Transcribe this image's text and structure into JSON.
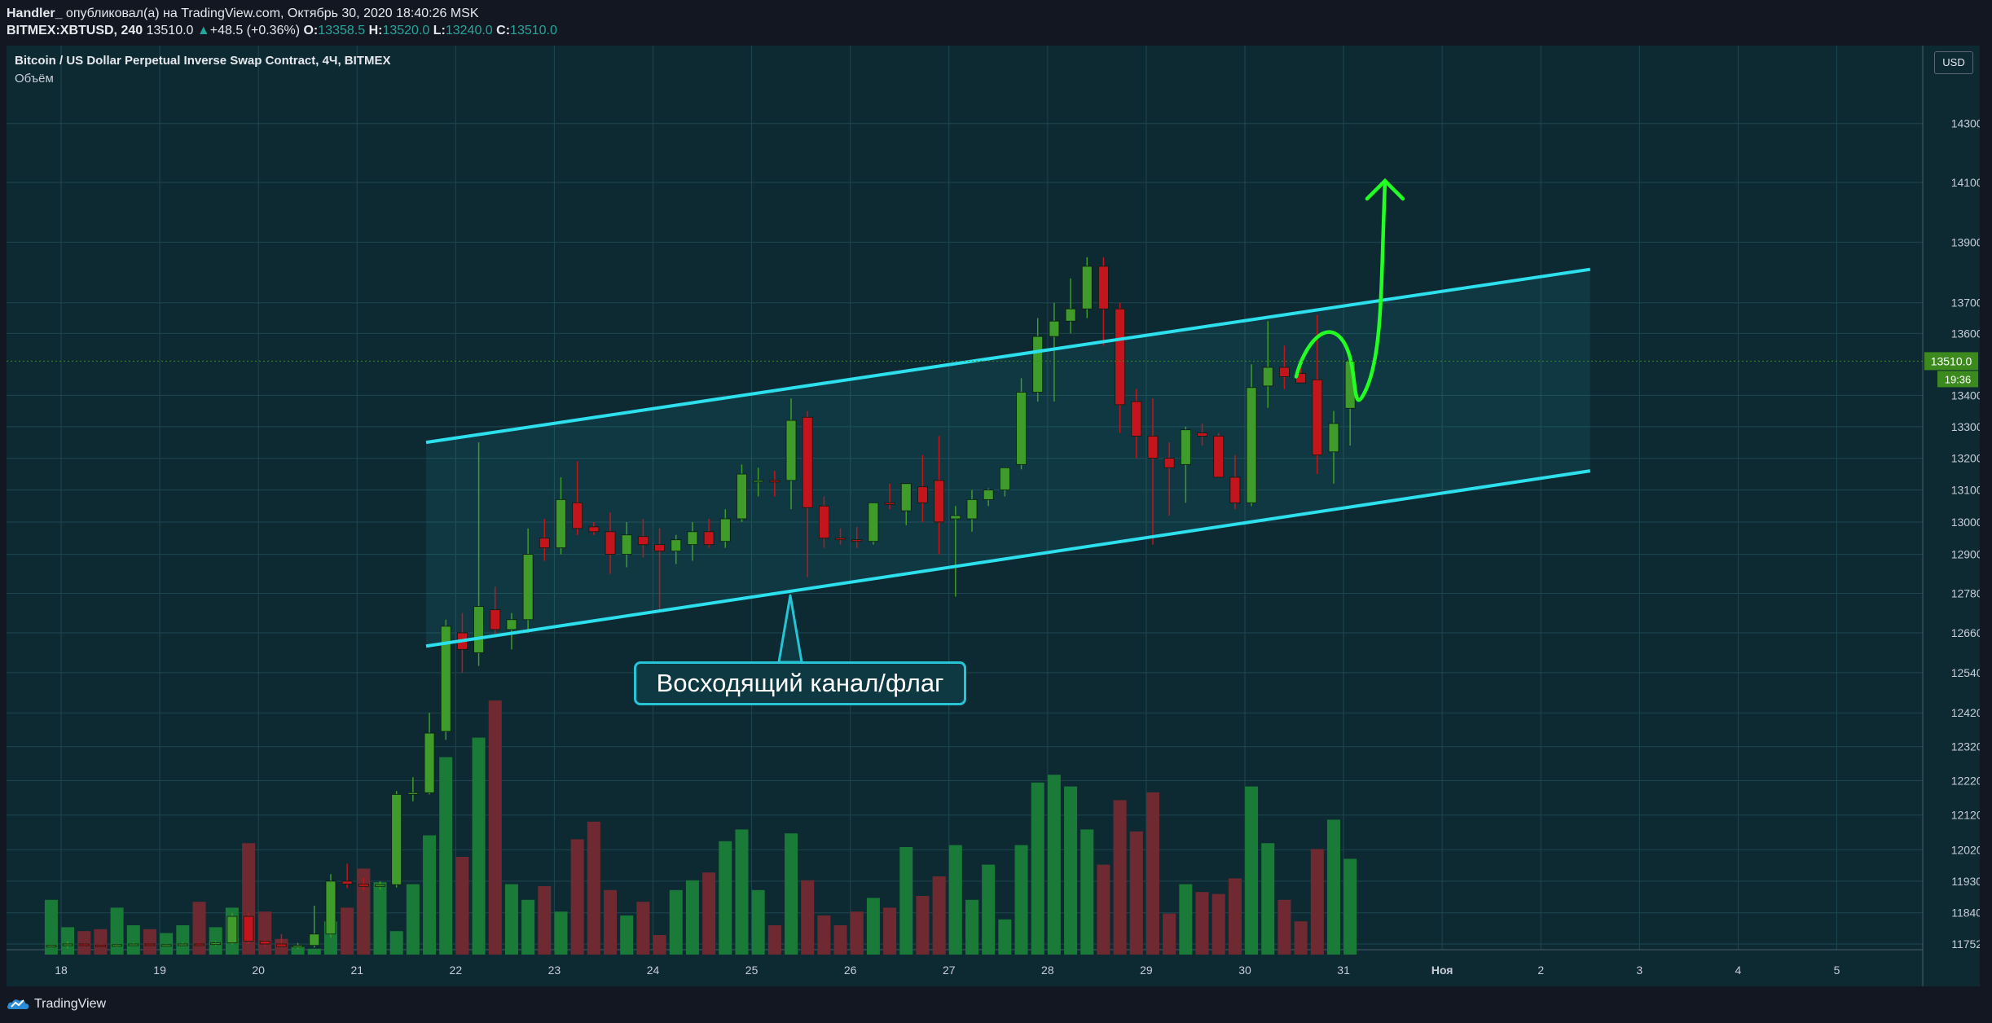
{
  "header": {
    "author": "Handler_",
    "published_text": "опубликовал(а) на TradingView.com, Октябрь 30, 2020 18:40:26 MSK",
    "symbol": "BITMEX:XBTUSD, 240",
    "last": "13510.0",
    "change_arrow": "▲",
    "change": "+48.5 (+0.36%)",
    "o_label": "O:",
    "o_value": "13358.5",
    "h_label": "H:",
    "h_value": "13520.0",
    "l_label": "L:",
    "l_value": "13240.0",
    "c_label": "C:",
    "c_value": "13510.0"
  },
  "legend": {
    "title": "Bitcoin / US Dollar Perpetual Inverse Swap Contract, 4Ч, BITMEX",
    "volume_label": "Объём"
  },
  "currency_button": "USD",
  "callout_text": "Восходящий канал/флаг",
  "brand": "TradingView",
  "colors": {
    "background": "#0d2a33",
    "up": "#3f9b2a",
    "down": "#c4151c",
    "volume_up": "#1a7a37",
    "volume_down": "#6e2a30",
    "channel_line": "#2de0ee",
    "forecast": "#22ff22",
    "price_label": "#3c8a1e"
  },
  "chart_data": {
    "type": "candlestick",
    "y_scale": "log",
    "y_ticks": [
      "14300.0",
      "14100.0",
      "13900.0",
      "13700.0",
      "13600.0",
      "13400.0",
      "13300.0",
      "13200.0",
      "13100.0",
      "13000.0",
      "12900.0",
      "12780.0",
      "12660.0",
      "12540.0",
      "12420.0",
      "12320.0",
      "12220.0",
      "12120.0",
      "12020.0",
      "11930.0",
      "11840.0",
      "11752.0"
    ],
    "y_tick_values": [
      14300,
      14100,
      13900,
      13700,
      13600,
      13400,
      13300,
      13200,
      13100,
      13000,
      12900,
      12780,
      12660,
      12540,
      12420,
      12320,
      12220,
      12120,
      12020,
      11930,
      11840,
      11752
    ],
    "x_ticks": [
      "18",
      "19",
      "20",
      "21",
      "22",
      "23",
      "24",
      "25",
      "26",
      "27",
      "28",
      "29",
      "30",
      "31",
      "Ноя",
      "2",
      "3",
      "4",
      "5"
    ],
    "x_tick_days": [
      18,
      19,
      20,
      21,
      22,
      23,
      24,
      25,
      26,
      27,
      28,
      29,
      30,
      31,
      32,
      33,
      34,
      35,
      36
    ],
    "current_price_label": "13510.0",
    "countdown_label": "19:36",
    "ohlc": [
      [
        "11745",
        "11750",
        "11742",
        "11748"
      ],
      [
        "11748",
        "11760",
        "11740",
        "11752"
      ],
      [
        "11752",
        "11755",
        "11745",
        "11749"
      ],
      [
        "11749",
        "11753",
        "11744",
        "11746"
      ],
      [
        "11746",
        "11752",
        "11742",
        "11750"
      ],
      [
        "11750",
        "11756",
        "11747",
        "11752"
      ],
      [
        "11752",
        "11755",
        "11746",
        "11748"
      ],
      [
        "11748",
        "11752",
        "11744",
        "11750"
      ],
      [
        "11750",
        "11756",
        "11747",
        "11752"
      ],
      [
        "11752",
        "11756",
        "11748",
        "11751"
      ],
      [
        "11751",
        "11760",
        "11746",
        "11755"
      ],
      [
        "11755",
        "11840",
        "11750",
        "11830"
      ],
      [
        "11830",
        "11840",
        "11752",
        "11760"
      ],
      [
        "11760",
        "11765",
        "11745",
        "11752"
      ],
      [
        "11752",
        "11780",
        "11742",
        "11745"
      ],
      [
        "11745",
        "11755",
        "11738",
        "11748"
      ],
      [
        "11748",
        "11860",
        "11742",
        "11780"
      ],
      [
        "11780",
        "11950",
        "11770",
        "11930"
      ],
      [
        "11930",
        "11980",
        "11910",
        "11922"
      ],
      [
        "11922",
        "11940",
        "11905",
        "11915"
      ],
      [
        "11915",
        "11930",
        "11905",
        "11920"
      ],
      [
        "11920",
        "12190",
        "11912",
        "12180"
      ],
      [
        "12180",
        "12230",
        "12160",
        "12185"
      ],
      [
        "12185",
        "12420",
        "12180",
        "12360"
      ],
      [
        "12365",
        "12700",
        "12340",
        "12680"
      ],
      [
        "12660",
        "12720",
        "12540",
        "12610"
      ],
      [
        "12600",
        "13250",
        "12560",
        "12740"
      ],
      [
        "12730",
        "12800",
        "12650",
        "12670"
      ],
      [
        "12670",
        "12720",
        "12610",
        "12700"
      ],
      [
        "12700",
        "12980",
        "12660",
        "12900"
      ],
      [
        "12950",
        "13010",
        "12880",
        "12920"
      ],
      [
        "12920",
        "13140",
        "12900",
        "13070"
      ],
      [
        "13060",
        "13190",
        "12960",
        "12980"
      ],
      [
        "12985",
        "13000",
        "12960",
        "12970"
      ],
      [
        "12970",
        "13030",
        "12840",
        "12900"
      ],
      [
        "12900",
        "13000",
        "12860",
        "12960"
      ],
      [
        "12955",
        "13010",
        "12890",
        "12930"
      ],
      [
        "12930",
        "12980",
        "12730",
        "12910"
      ],
      [
        "12910",
        "12960",
        "12870",
        "12945"
      ],
      [
        "12930",
        "13000",
        "12880",
        "12970"
      ],
      [
        "12970",
        "13010",
        "12920",
        "12930"
      ],
      [
        "12940",
        "13040",
        "12920",
        "13010"
      ],
      [
        "13010",
        "13180",
        "13000",
        "13150"
      ],
      [
        "13125",
        "13170",
        "13080",
        "13130"
      ],
      [
        "13130",
        "13160",
        "13080",
        "13125"
      ],
      [
        "13130",
        "13390",
        "13040",
        "13320"
      ],
      [
        "13330",
        "13350",
        "12830",
        "13045"
      ],
      [
        "13050",
        "13080",
        "12920",
        "12950"
      ],
      [
        "12950",
        "12980",
        "12930",
        "12945"
      ],
      [
        "12945",
        "12985",
        "12920",
        "12940"
      ],
      [
        "12940",
        "13040",
        "12930",
        "13060"
      ],
      [
        "13060",
        "13120",
        "13040",
        "13058"
      ],
      [
        "13035",
        "13120",
        "12990",
        "13120"
      ],
      [
        "13110",
        "13210",
        "13000",
        "13060"
      ],
      [
        "13130",
        "13270",
        "12900",
        "13000"
      ],
      [
        "13010",
        "13050",
        "12770",
        "13020"
      ],
      [
        "13010",
        "13100",
        "12970",
        "13070"
      ],
      [
        "13070",
        "13105",
        "13050",
        "13100"
      ],
      [
        "13100",
        "13160",
        "13080",
        "13170"
      ],
      [
        "13180",
        "13455",
        "13165",
        "13410"
      ],
      [
        "13410",
        "13650",
        "13380",
        "13590"
      ],
      [
        "13590",
        "13700",
        "13380",
        "13640"
      ],
      [
        "13640",
        "13780",
        "13600",
        "13680"
      ],
      [
        "13680",
        "13850",
        "13650",
        "13820"
      ],
      [
        "13820",
        "13850",
        "13560",
        "13680"
      ],
      [
        "13680",
        "13700",
        "13280",
        "13370"
      ],
      [
        "13380",
        "13420",
        "13200",
        "13270"
      ],
      [
        "13270",
        "13390",
        "12930",
        "13200"
      ],
      [
        "13200",
        "13250",
        "13020",
        "13170"
      ],
      [
        "13180",
        "13300",
        "13060",
        "13290"
      ],
      [
        "13280",
        "13310",
        "13240",
        "13270"
      ],
      [
        "13270",
        "13280",
        "13140",
        "13140"
      ],
      [
        "13140",
        "13210",
        "13040",
        "13060"
      ],
      [
        "13060",
        "13500",
        "13050",
        "13425"
      ],
      [
        "13430",
        "13640",
        "13360",
        "13490"
      ],
      [
        "13490",
        "13560",
        "13420",
        "13460"
      ],
      [
        "13470",
        "13520",
        "13440",
        "13440"
      ],
      [
        "13450",
        "13660",
        "13150",
        "13210"
      ],
      [
        "13220",
        "13350",
        "13120",
        "13310"
      ],
      [
        "13358.5",
        "13520",
        "13240",
        "13510"
      ]
    ],
    "volume": [
      28,
      14,
      12,
      13,
      24,
      15,
      13,
      11,
      15,
      27,
      14,
      24,
      57,
      22,
      8,
      4,
      3,
      17,
      24,
      44,
      37,
      12,
      36,
      61,
      101,
      50,
      111,
      130,
      36,
      28,
      35,
      22,
      59,
      68,
      33,
      20,
      27,
      10,
      33,
      38,
      42,
      58,
      64,
      33,
      15,
      62,
      38,
      20,
      15,
      22,
      29,
      24,
      55,
      30,
      40,
      56,
      28,
      46,
      18,
      56,
      88,
      92,
      86,
      64,
      46,
      79,
      63,
      83,
      21,
      36,
      32,
      31,
      39,
      86,
      57,
      28,
      17,
      54,
      69,
      49
    ],
    "channel": {
      "upper": [
        [
          21.7,
          13250
        ],
        [
          33.5,
          13810
        ]
      ],
      "lower": [
        [
          21.7,
          12620
        ],
        [
          33.5,
          13160
        ]
      ]
    }
  }
}
